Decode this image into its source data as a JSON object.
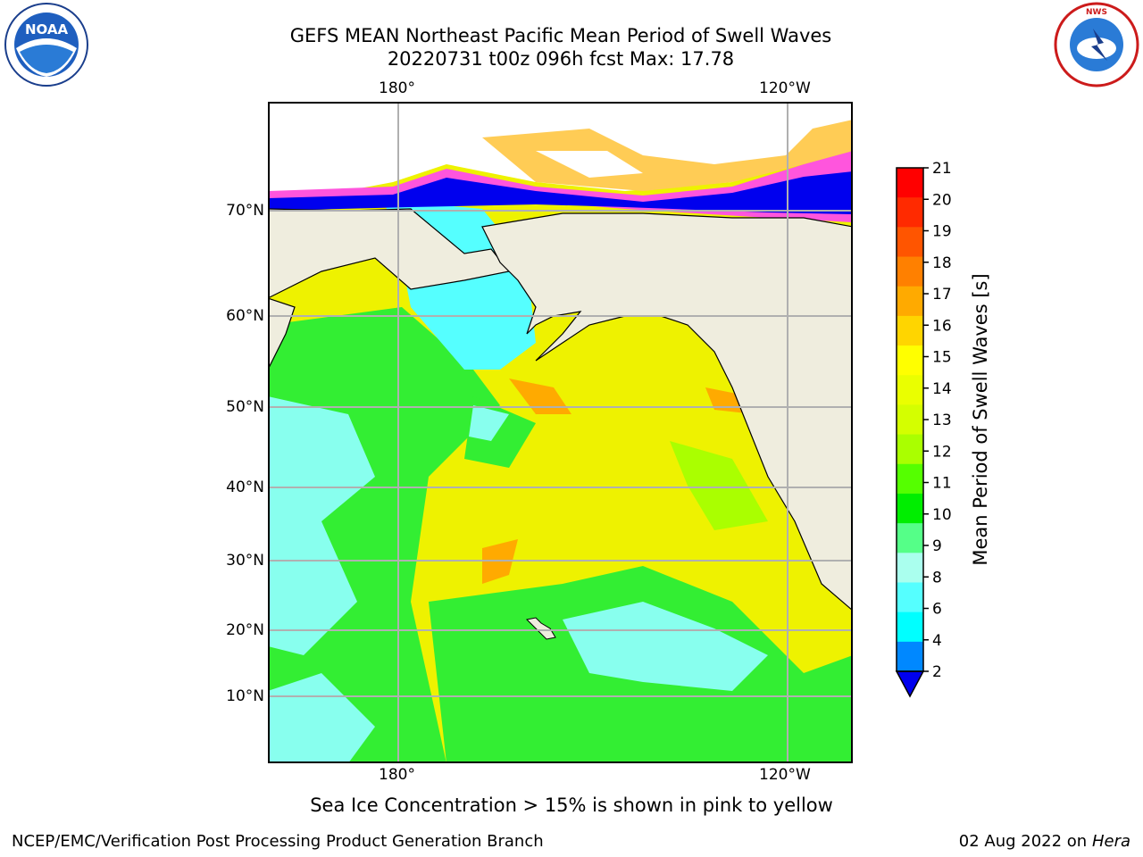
{
  "title_line1": "GEFS MEAN Northeast Pacific Mean Period of Swell Waves",
  "title_line2": "20220731 t00z 096h fcst   Max: 17.78",
  "map": {
    "lon_ticks_top": [
      "180°",
      "120°W"
    ],
    "lon_ticks_bottom": [
      "180°",
      "120°W"
    ],
    "lat_ticks": [
      "70°N",
      "60°N",
      "50°N",
      "40°N",
      "30°N",
      "20°N",
      "10°N"
    ],
    "colors": {
      "land": "#efedde",
      "ocean_green": "#33ee33",
      "ocean_yellow": "#eef200",
      "ice_blue": "#0000ee",
      "grid": "#b0b0b0"
    }
  },
  "colorbar": {
    "label": "Mean Period of Swell Waves [s]",
    "tick_labels": [
      "21",
      "20",
      "19",
      "18",
      "17",
      "16",
      "15",
      "14",
      "13",
      "12",
      "11",
      "10",
      "9",
      "8",
      "6",
      "4",
      "2"
    ],
    "colors": [
      "#ff0000",
      "#ff2a00",
      "#ff5500",
      "#ff8000",
      "#ffaa00",
      "#ffd500",
      "#ffff00",
      "#eaff00",
      "#d4ff00",
      "#aaff00",
      "#55ff00",
      "#00ee00",
      "#55ff88",
      "#aaffee",
      "#55ffff",
      "#00ffff",
      "#0088ff"
    ],
    "under_color": "#0000ee"
  },
  "note": "Sea Ice Concentration > 15% is shown in pink to yellow",
  "credit_left": "NCEP/EMC/Verification Post Processing Product Generation Branch",
  "credit_right_date": "02 Aug 2022 on",
  "credit_right_host": "Hera",
  "logos": {
    "left": "noaa-logo",
    "right": "nws-logo"
  }
}
